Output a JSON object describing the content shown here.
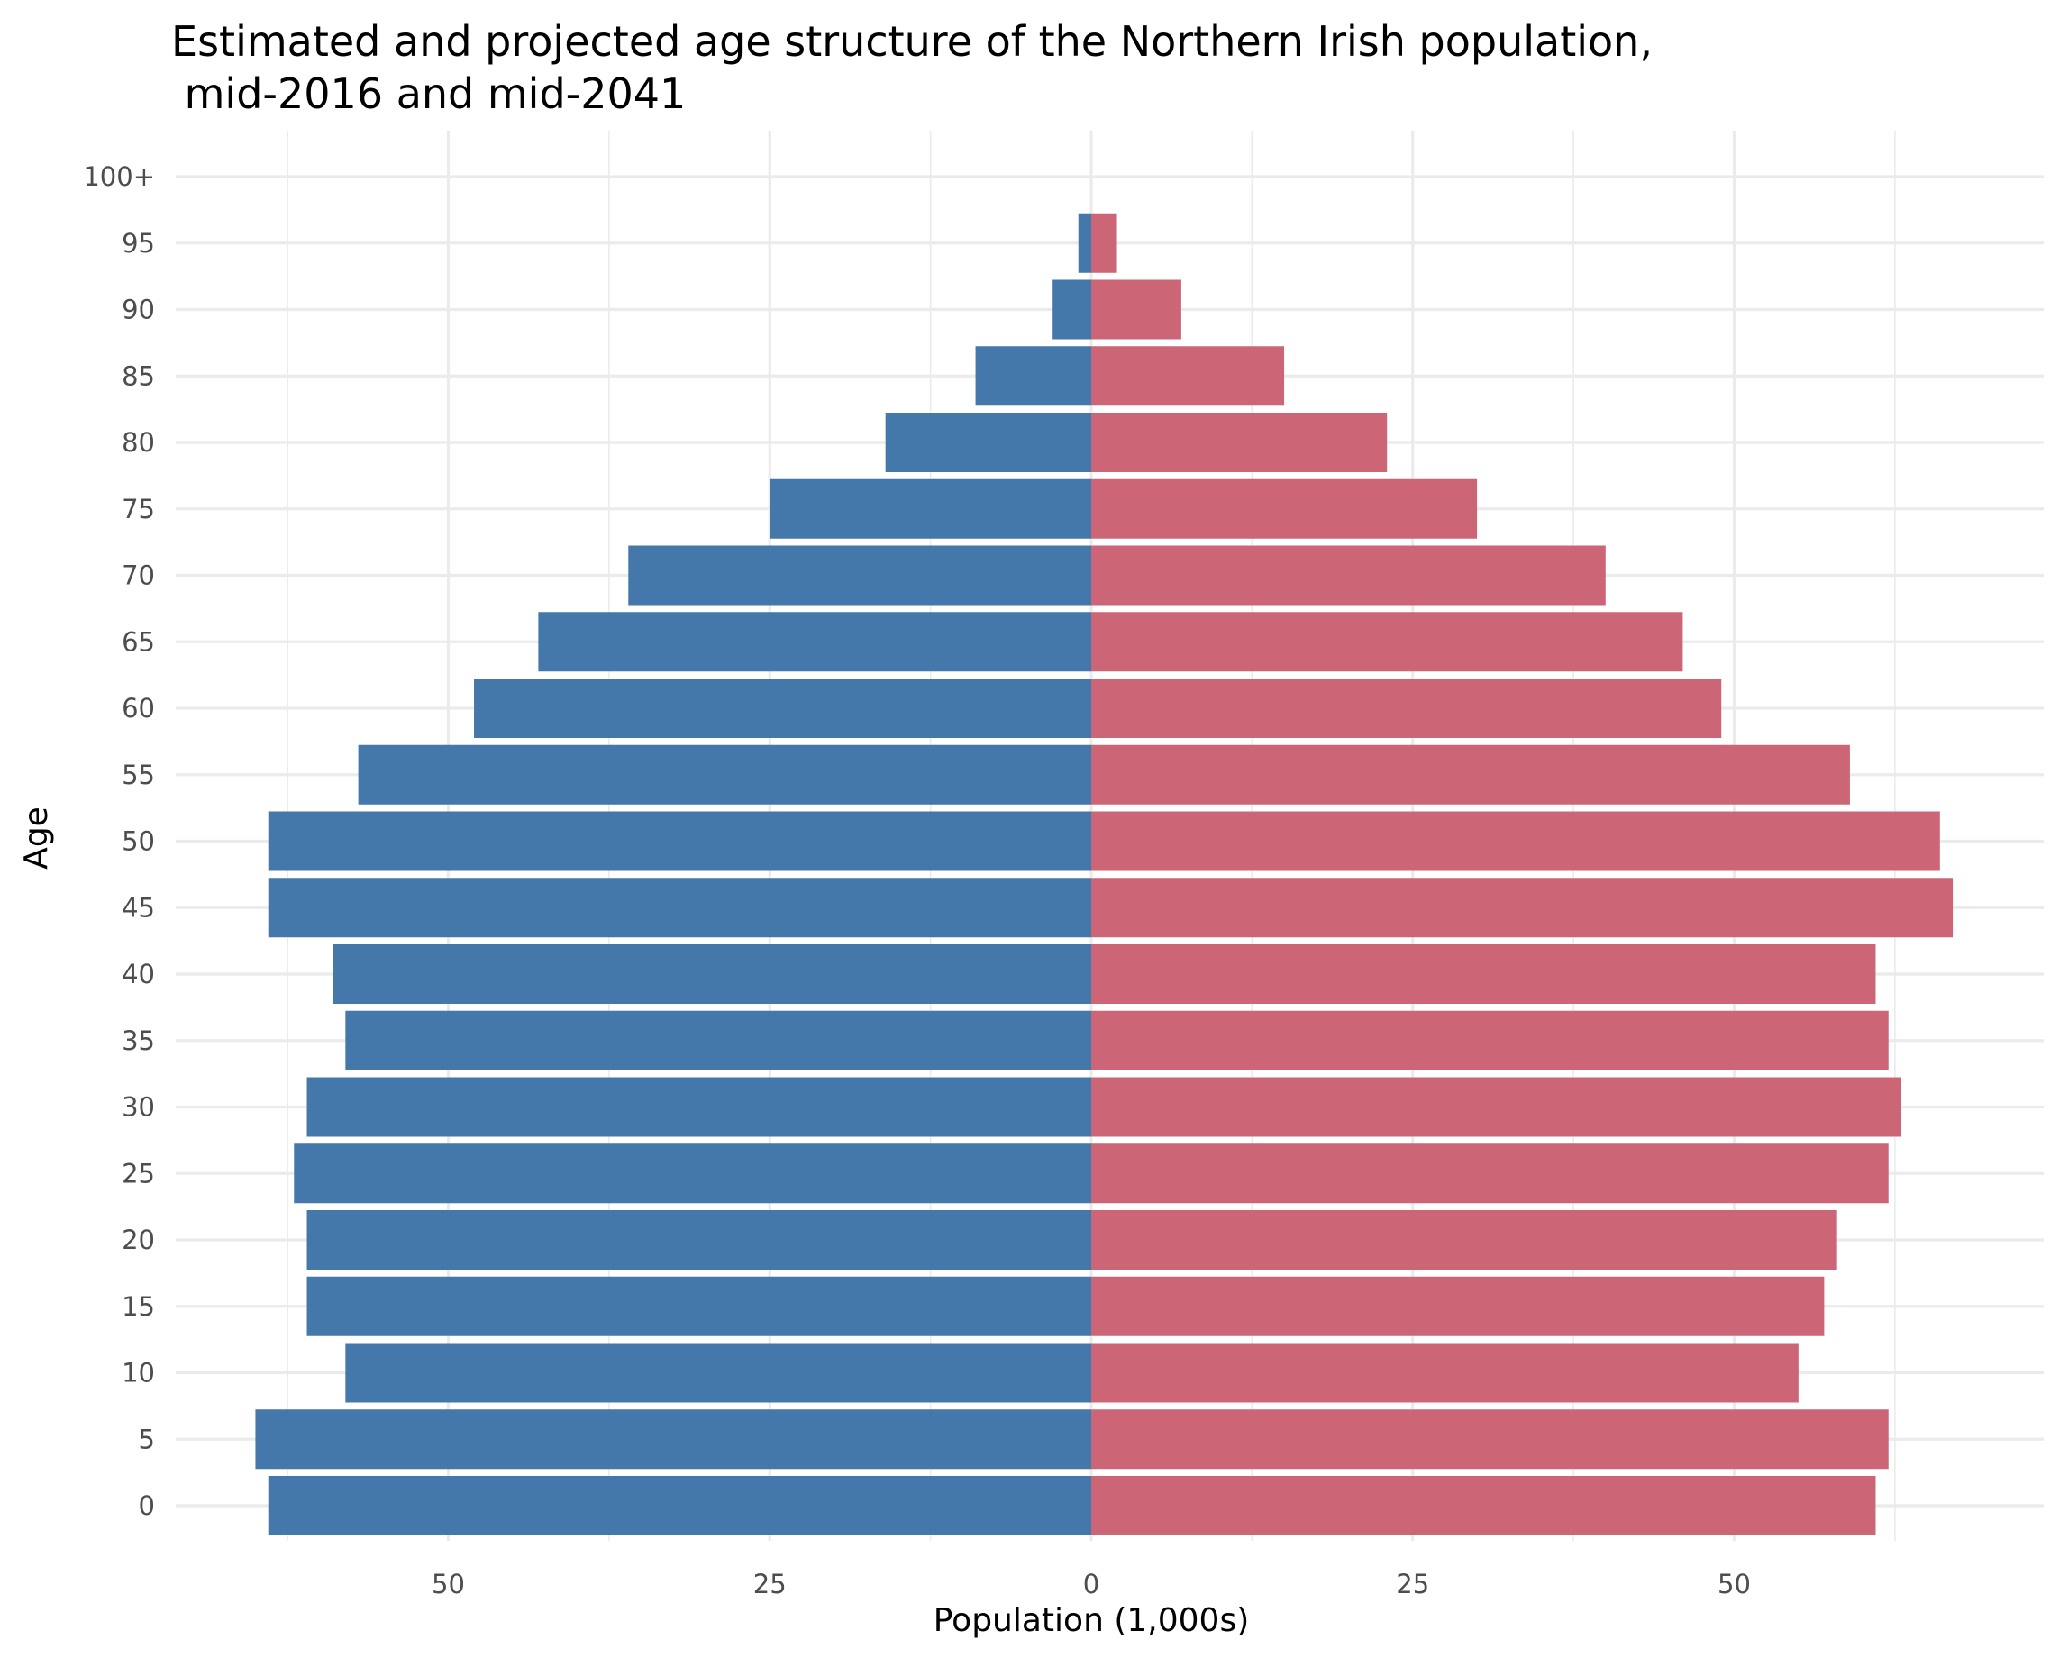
{
  "chart_data": {
    "type": "bar",
    "orientation": "horizontal-diverging",
    "title_lines": [
      "Estimated and projected age structure of the Northern Irish population,",
      " mid-2016 and mid-2041"
    ],
    "xlabel": "Population (1,000s)",
    "ylabel": "Age",
    "categories": [
      "0",
      "5",
      "10",
      "15",
      "20",
      "25",
      "30",
      "35",
      "40",
      "45",
      "50",
      "55",
      "60",
      "65",
      "70",
      "75",
      "80",
      "85",
      "90",
      "95",
      "100+"
    ],
    "series": [
      {
        "side": "left",
        "color": "#4477aa",
        "values": [
          64,
          65,
          58,
          61,
          61,
          62,
          61,
          58,
          59,
          64,
          64,
          57,
          48,
          43,
          36,
          25,
          16,
          9,
          3,
          1,
          null
        ]
      },
      {
        "side": "right",
        "color": "#cc6677",
        "values": [
          61,
          62,
          55,
          57,
          58,
          62,
          63,
          62,
          61,
          67,
          66,
          59,
          49,
          46,
          40,
          30,
          23,
          15,
          7,
          2,
          null
        ]
      }
    ],
    "xlim": [
      -72,
      72
    ],
    "x_ticks": [
      -50,
      -25,
      0,
      25,
      50
    ],
    "x_tick_labels": [
      "50",
      "25",
      "0",
      "25",
      "50"
    ],
    "grid": true,
    "legend": "none"
  }
}
